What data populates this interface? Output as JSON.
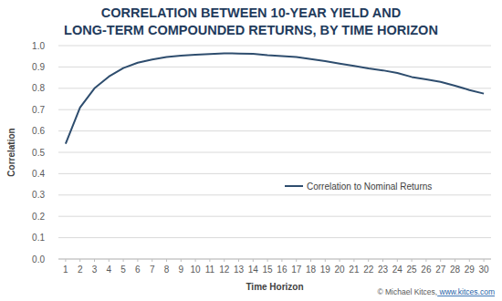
{
  "chart_data": {
    "type": "line",
    "title": [
      "CORRELATION BETWEEN 10-YEAR YIELD AND",
      "LONG-TERM COMPOUNDED RETURNS, BY TIME HORIZON"
    ],
    "x_label": "Time Horizon",
    "y_label": "Correlation",
    "annotations": [
      "© Michael Kitces,",
      "www.kitces.com"
    ],
    "x": [
      1,
      2,
      3,
      4,
      5,
      6,
      7,
      8,
      9,
      10,
      11,
      12,
      13,
      14,
      15,
      16,
      17,
      18,
      19,
      20,
      21,
      22,
      23,
      24,
      25,
      26,
      27,
      28,
      29,
      30
    ],
    "series": [
      {
        "name": "Correlation to Nominal Returns",
        "color": "#2e4d6e",
        "line_style": "solid",
        "values": [
          0.54,
          0.71,
          0.8,
          0.855,
          0.895,
          0.92,
          0.935,
          0.947,
          0.953,
          0.957,
          0.961,
          0.964,
          0.963,
          0.962,
          0.955,
          0.951,
          0.947,
          0.937,
          0.927,
          0.916,
          0.905,
          0.893,
          0.884,
          0.872,
          0.853,
          0.842,
          0.83,
          0.812,
          0.792,
          0.775
        ]
      }
    ],
    "xlim": [
      0.5,
      30.5
    ],
    "xticks": [
      1,
      2,
      3,
      4,
      5,
      6,
      7,
      8,
      9,
      10,
      11,
      12,
      13,
      14,
      15,
      16,
      17,
      18,
      19,
      20,
      21,
      22,
      23,
      24,
      25,
      26,
      27,
      28,
      29,
      30
    ],
    "ylim": [
      0,
      1
    ],
    "yticks": [
      {
        "value": 0,
        "label": "0.0"
      },
      0.1,
      0.2,
      0.3,
      0.4,
      0.5,
      0.6,
      0.7,
      0.8,
      0.9,
      {
        "value": 1,
        "label": "1.0"
      }
    ],
    "grid": true,
    "legend": "right"
  }
}
